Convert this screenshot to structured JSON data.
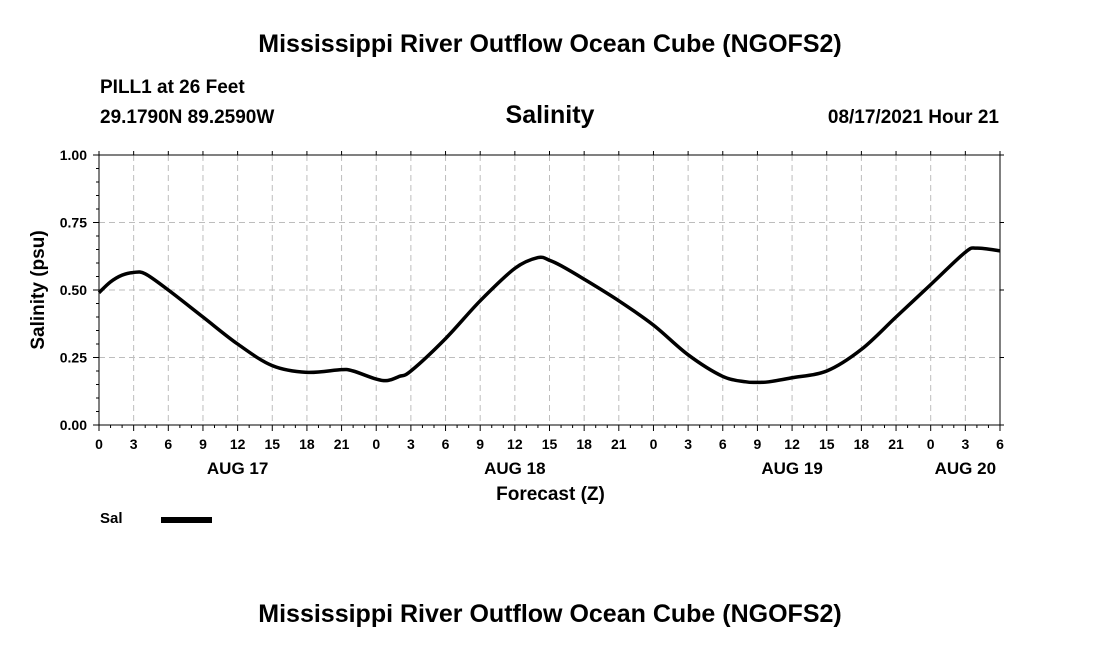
{
  "header": {
    "title": "Mississippi River Outflow Ocean Cube (NGOFS2)",
    "station": "PILL1 at 26 Feet",
    "coords": "29.1790N  89.2590W",
    "variable": "Salinity",
    "datetime": "08/17/2021 Hour 21"
  },
  "footer": {
    "title": "Mississippi River Outflow Ocean Cube (NGOFS2)"
  },
  "chart_data": {
    "type": "line",
    "title": "Salinity",
    "xlabel": "Forecast (Z)",
    "ylabel": "Salinity (psu)",
    "ylim": [
      0,
      1
    ],
    "xlim_hours": [
      0,
      78
    ],
    "yticks": [
      "0.00",
      "0.25",
      "0.50",
      "0.75",
      "1.00"
    ],
    "xtick_labels": [
      "0",
      "3",
      "6",
      "9",
      "12",
      "15",
      "18",
      "21",
      "0",
      "3",
      "6",
      "9",
      "12",
      "15",
      "18",
      "21",
      "0",
      "3",
      "6",
      "9",
      "12",
      "15",
      "18",
      "21",
      "0",
      "3",
      "6"
    ],
    "day_labels": [
      {
        "label": "AUG 17",
        "hour": 12
      },
      {
        "label": "AUG 18",
        "hour": 36
      },
      {
        "label": "AUG 19",
        "hour": 60
      },
      {
        "label": "AUG 20",
        "hour": 75
      }
    ],
    "grid": true,
    "legend_position": "bottom-left",
    "series": [
      {
        "name": "Sal",
        "color": "#000000",
        "x": [
          0,
          1,
          2,
          3,
          4,
          6,
          9,
          12,
          15,
          18,
          21,
          22,
          24,
          25,
          26,
          27,
          30,
          33,
          36,
          38,
          39,
          40,
          42,
          45,
          48,
          51,
          54,
          56,
          57,
          58,
          60,
          63,
          66,
          69,
          72,
          75,
          76,
          78
        ],
        "values": [
          0.49,
          0.53,
          0.555,
          0.565,
          0.56,
          0.5,
          0.4,
          0.3,
          0.22,
          0.195,
          0.205,
          0.2,
          0.17,
          0.165,
          0.18,
          0.2,
          0.32,
          0.46,
          0.58,
          0.62,
          0.61,
          0.59,
          0.54,
          0.46,
          0.37,
          0.26,
          0.18,
          0.16,
          0.158,
          0.16,
          0.175,
          0.2,
          0.28,
          0.4,
          0.52,
          0.64,
          0.655,
          0.645
        ]
      }
    ]
  },
  "legend": {
    "label": "Sal"
  }
}
